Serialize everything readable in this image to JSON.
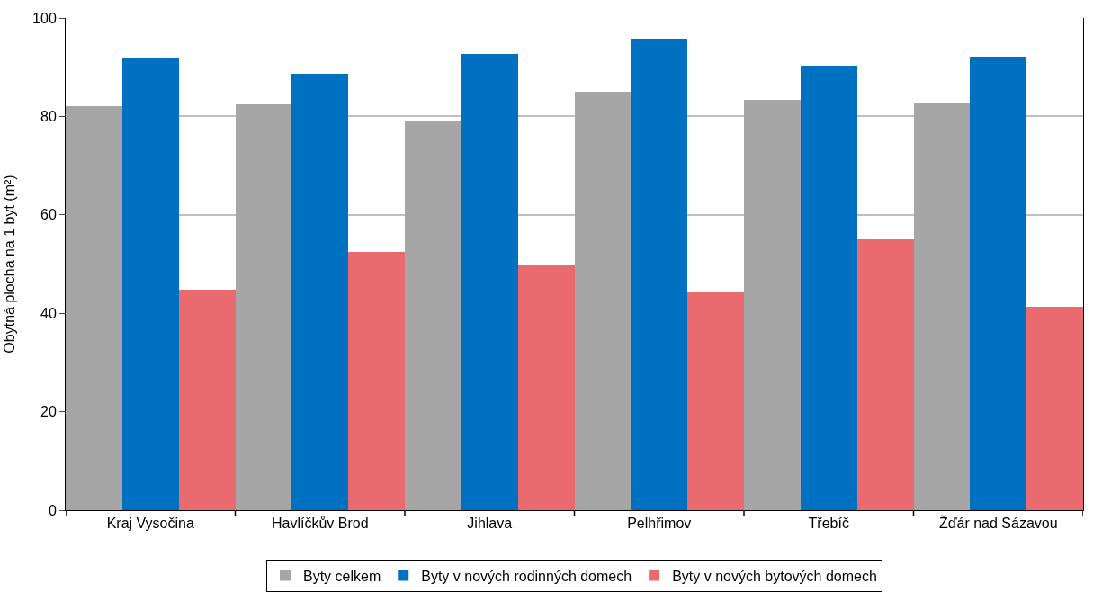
{
  "chart_data": {
    "type": "bar",
    "ylabel": "Obytná plocha na 1 byt (m²)",
    "categories": [
      "Kraj Vysočina",
      "Havlíčkův Brod",
      "Jihlava",
      "Pelhřimov",
      "Třebíč",
      "Žďár nad Sázavou"
    ],
    "series": [
      {
        "name": "Byty celkem",
        "color": "#a6a6a6",
        "values": [
          82.1,
          82.4,
          79.2,
          85.1,
          83.3,
          82.8
        ]
      },
      {
        "name": "Byty v nových rodinných domech",
        "color": "#0070c0",
        "values": [
          91.7,
          88.6,
          92.6,
          95.8,
          90.4,
          92.2
        ]
      },
      {
        "name": "Byty v nových bytových domech",
        "color": "#e96b70",
        "values": [
          44.7,
          52.4,
          49.8,
          44.4,
          55.1,
          41.3
        ]
      }
    ],
    "ylim": [
      0,
      100
    ],
    "yticks": [
      0,
      20,
      40,
      60,
      80,
      100
    ],
    "grid": "y",
    "legend": "bottom"
  }
}
